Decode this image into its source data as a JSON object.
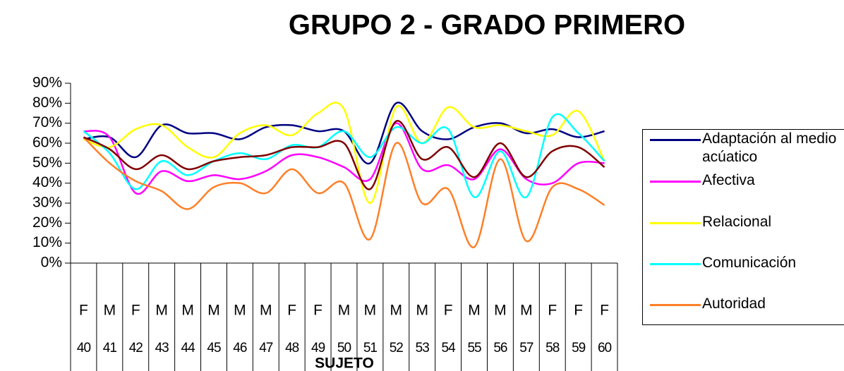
{
  "chart_data": {
    "type": "line",
    "title": "GRUPO  2 - GRADO PRIMERO",
    "x_label": "SUJETO",
    "categories": [
      "40",
      "41",
      "42",
      "43",
      "44",
      "45",
      "46",
      "47",
      "48",
      "49",
      "50",
      "51",
      "52",
      "53",
      "54",
      "55",
      "56",
      "57",
      "58",
      "59",
      "60"
    ],
    "groups": [
      "F",
      "M",
      "F",
      "M",
      "M",
      "M",
      "M",
      "M",
      "F",
      "F",
      "M",
      "M",
      "M",
      "M",
      "F",
      "M",
      "M",
      "M",
      "F",
      "F",
      "F"
    ],
    "ylim": [
      0,
      90
    ],
    "yticks": [
      {
        "value": 0,
        "label": "0%"
      },
      {
        "value": 10,
        "label": "10%"
      },
      {
        "value": 20,
        "label": "20%"
      },
      {
        "value": 30,
        "label": "30%"
      },
      {
        "value": 40,
        "label": "40%"
      },
      {
        "value": 50,
        "label": "50%"
      },
      {
        "value": 60,
        "label": "60%"
      },
      {
        "value": 70,
        "label": "70%"
      },
      {
        "value": 80,
        "label": "80%"
      },
      {
        "value": 90,
        "label": "90%"
      }
    ],
    "grid": false,
    "legend": "right",
    "series": [
      {
        "name": "Adaptación al medio acúatico",
        "color": "#000080",
        "values": [
          62,
          63,
          53,
          69,
          65,
          65,
          62,
          68,
          69,
          66,
          66,
          50,
          80,
          66,
          62,
          68,
          70,
          65,
          67,
          63,
          66
        ]
      },
      {
        "name": "Afectiva",
        "color": "#ff00ff",
        "values": [
          66,
          63,
          35,
          46,
          41,
          44,
          42,
          46,
          54,
          53,
          48,
          42,
          70,
          47,
          49,
          42,
          57,
          42,
          40,
          50,
          50
        ]
      },
      {
        "name": "Relacional",
        "color": "#ffff00",
        "values": [
          62,
          58,
          67,
          69,
          58,
          53,
          65,
          69,
          64,
          75,
          77,
          30,
          78,
          60,
          78,
          68,
          69,
          66,
          64,
          76,
          51
        ]
      },
      {
        "name": "Comunicación",
        "color": "#00ffff",
        "values": [
          66,
          55,
          37,
          51,
          44,
          51,
          55,
          52,
          59,
          58,
          66,
          53,
          68,
          60,
          67,
          33,
          56,
          33,
          73,
          65,
          51
        ]
      },
      {
        "name": "Autoridad",
        "color": "#ff7f27",
        "values": [
          63,
          50,
          41,
          36,
          27,
          38,
          40,
          35,
          47,
          35,
          40,
          12,
          60,
          30,
          37,
          8,
          52,
          11,
          38,
          37,
          29
        ]
      },
      {
        "color": "#800000",
        "values": [
          63,
          57,
          47,
          54,
          47,
          51,
          53,
          54,
          58,
          58,
          60,
          37,
          71,
          52,
          58,
          43,
          60,
          43,
          56,
          58,
          48
        ]
      }
    ]
  }
}
